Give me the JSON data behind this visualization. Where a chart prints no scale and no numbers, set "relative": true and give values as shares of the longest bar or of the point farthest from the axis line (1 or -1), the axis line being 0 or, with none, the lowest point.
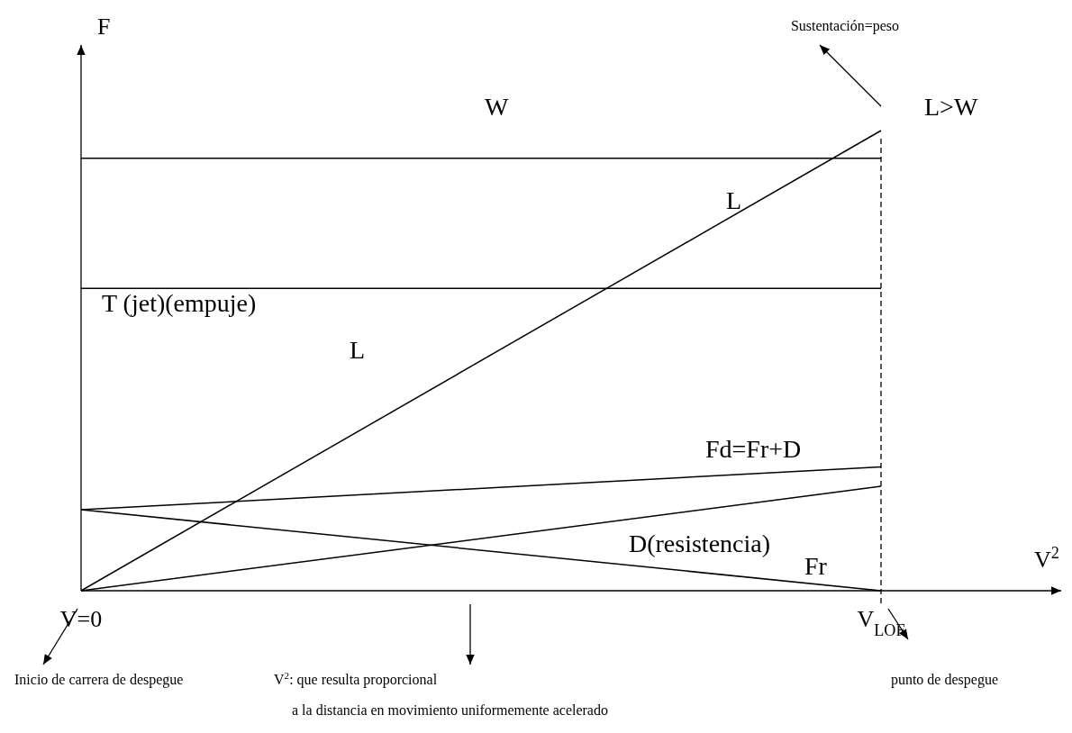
{
  "chart_data": {
    "type": "line",
    "relative": true,
    "xlabel": "V$^{2}$",
    "ylabel": "F",
    "categories": [
      "V=0",
      "V$_{LOF}$"
    ],
    "marker": "none",
    "line_style": "solid",
    "grid": false,
    "legend": false,
    "series": [
      {
        "name": "W",
        "color": "#000000",
        "values": [
          0.94,
          0.94
        ]
      },
      {
        "name": "T (jet)(empuje)",
        "color": "#000000",
        "values": [
          0.657,
          0.657
        ]
      },
      {
        "name": "L",
        "color": "#000000",
        "values": [
          0,
          1
        ]
      },
      {
        "name": "Fd=Fr+D",
        "color": "#000000",
        "values": [
          0.176,
          0.269
        ]
      },
      {
        "name": "D(resistencia)",
        "color": "#000000",
        "values": [
          0,
          0.227
        ]
      },
      {
        "name": "Fr",
        "color": "#000000",
        "values": [
          0.176,
          0
        ]
      }
    ],
    "ref_lines": [
      {
        "axis": "x",
        "value": "V$_{LOF}$",
        "line_style": "dashed",
        "color": "#000000"
      }
    ],
    "annotations": [
      "L",
      "L>W",
      "Sustentación=peso",
      "Inicio de carrera de despegue",
      "V$^{2}$: que resulta proporcional",
      "punto de despegue",
      "a la distancia en movimiento uniformemente acelerado"
    ]
  }
}
